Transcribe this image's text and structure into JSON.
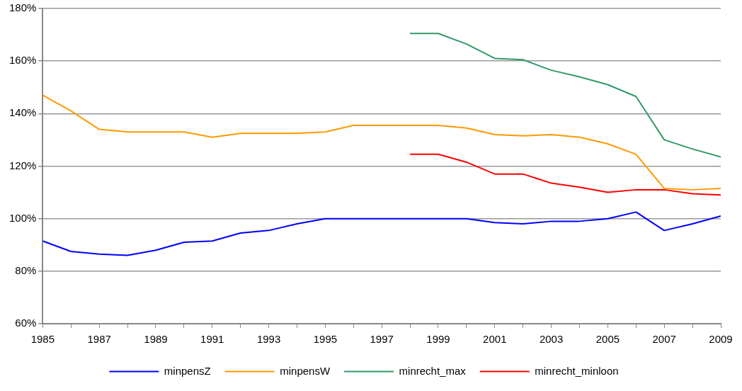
{
  "chart_data": {
    "type": "line",
    "x": [
      1985,
      1986,
      1987,
      1988,
      1989,
      1990,
      1991,
      1992,
      1993,
      1994,
      1995,
      1996,
      1997,
      1998,
      1999,
      2000,
      2001,
      2002,
      2003,
      2004,
      2005,
      2006,
      2007,
      2008,
      2009
    ],
    "xlim": [
      1985,
      2009
    ],
    "xticks": [
      1985,
      {
        "value": 1986,
        "label": null
      },
      1987,
      {
        "value": 1988,
        "label": null
      },
      1989,
      {
        "value": 1990,
        "label": null
      },
      1991,
      {
        "value": 1992,
        "label": null
      },
      1993,
      {
        "value": 1994,
        "label": null
      },
      1995,
      {
        "value": 1996,
        "label": null
      },
      1997,
      {
        "value": 1998,
        "label": null
      },
      1999,
      {
        "value": 2000,
        "label": null
      },
      2001,
      {
        "value": 2002,
        "label": null
      },
      2003,
      {
        "value": 2004,
        "label": null
      },
      2005,
      {
        "value": 2006,
        "label": null
      },
      2007,
      {
        "value": 2008,
        "label": null
      },
      2009
    ],
    "ylim": [
      60,
      180
    ],
    "yticks": [
      {
        "value": 60,
        "label": "60%"
      },
      {
        "value": 80,
        "label": "80%"
      },
      {
        "value": 100,
        "label": "100%"
      },
      {
        "value": 120,
        "label": "120%"
      },
      {
        "value": 140,
        "label": "140%"
      },
      {
        "value": 160,
        "label": "160%"
      },
      {
        "value": 180,
        "label": "180%"
      }
    ],
    "grid": "y",
    "legend": "bottom",
    "marker": "none",
    "series": [
      {
        "name": "minpensZ",
        "color": "#0000ff",
        "values": [
          91.5,
          87.5,
          86.5,
          86,
          88,
          91,
          91.5,
          94.5,
          95.5,
          98,
          100,
          100,
          100,
          100,
          100,
          100,
          98.5,
          98,
          99,
          99,
          100,
          102.5,
          95.5,
          98,
          101
        ]
      },
      {
        "name": "minpensW",
        "color": "#ff9900",
        "values": [
          147,
          141,
          134,
          133,
          133,
          133,
          131,
          132.5,
          132.5,
          132.5,
          133,
          135.5,
          135.5,
          135.5,
          135.5,
          134.5,
          132,
          131.5,
          132,
          131,
          128.5,
          124.5,
          111.5,
          111,
          111.5
        ]
      },
      {
        "name": "minrecht_max",
        "color": "#339966",
        "values": [
          null,
          null,
          null,
          null,
          null,
          null,
          null,
          null,
          null,
          null,
          null,
          null,
          null,
          170.5,
          170.5,
          166.5,
          161,
          160.5,
          156.5,
          154,
          151,
          146.5,
          130,
          126.5,
          123.5
        ]
      },
      {
        "name": "minrecht_minloon",
        "color": "#ff0000",
        "values": [
          null,
          null,
          null,
          null,
          null,
          null,
          null,
          null,
          null,
          null,
          null,
          null,
          null,
          124.5,
          124.5,
          121.5,
          117,
          117,
          113.5,
          112,
          110,
          111,
          111,
          109.5,
          109
        ]
      }
    ]
  }
}
